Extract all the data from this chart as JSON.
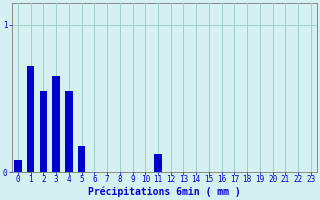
{
  "categories": [
    0,
    1,
    2,
    3,
    4,
    5,
    6,
    7,
    8,
    9,
    10,
    11,
    12,
    13,
    14,
    15,
    16,
    17,
    18,
    19,
    20,
    21,
    22,
    23
  ],
  "values": [
    0.08,
    0.72,
    0.55,
    0.65,
    0.55,
    0.18,
    0.0,
    0.0,
    0.0,
    0.0,
    0.0,
    0.12,
    0.0,
    0.0,
    0.0,
    0.0,
    0.0,
    0.0,
    0.0,
    0.0,
    0.0,
    0.0,
    0.0,
    0.0
  ],
  "bar_color": "#0000cc",
  "bg_color": "#d4f0f0",
  "grid_color": "#a0cccc",
  "axis_color": "#888888",
  "text_color": "#0000cc",
  "xlabel": "Précipitations 6min ( mm )",
  "ylim": [
    0,
    1.15
  ],
  "xlim": [
    -0.5,
    23.5
  ],
  "bar_width": 0.6,
  "tick_fontsize": 5.5,
  "label_fontsize": 7
}
